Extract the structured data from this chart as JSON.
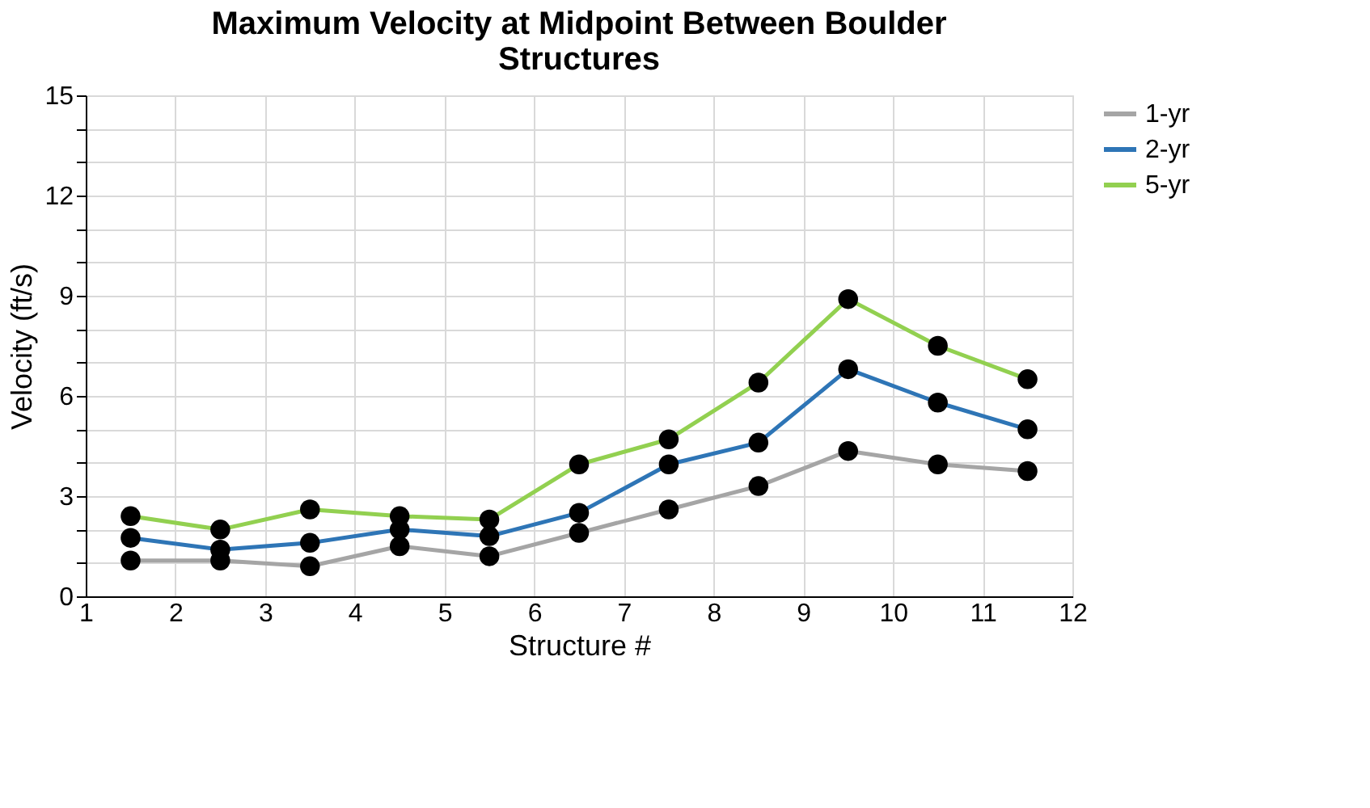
{
  "chart_data": {
    "type": "line",
    "title": "Maximum Velocity at Midpoint Between Boulder Structures",
    "xlabel": "Structure #",
    "ylabel": "Velocity (ft/s)",
    "x": [
      1.5,
      2.5,
      3.5,
      4.5,
      5.5,
      6.5,
      7.5,
      8.5,
      9.5,
      10.5,
      11.5
    ],
    "series": [
      {
        "name": "1-yr",
        "color": "#a5a5a5",
        "values": [
          1.07,
          1.07,
          0.9,
          1.5,
          1.2,
          1.9,
          2.6,
          3.3,
          4.35,
          3.95,
          3.75
        ]
      },
      {
        "name": "2-yr",
        "color": "#2e75b6",
        "values": [
          1.75,
          1.4,
          1.6,
          2.0,
          1.8,
          2.5,
          3.95,
          4.6,
          6.8,
          5.8,
          5.0
        ]
      },
      {
        "name": "5-yr",
        "color": "#92d050",
        "values": [
          2.4,
          2.0,
          2.6,
          2.4,
          2.3,
          3.95,
          4.7,
          6.4,
          8.9,
          7.5,
          6.5
        ]
      }
    ],
    "xlim": [
      1,
      12
    ],
    "xticks": [
      1,
      2,
      3,
      4,
      5,
      6,
      7,
      8,
      9,
      10,
      11,
      12
    ],
    "ylim": [
      0,
      15
    ],
    "yticks": [
      0,
      {
        "value": 1,
        "label": null
      },
      {
        "value": 2,
        "label": null
      },
      3,
      {
        "value": 4,
        "label": null
      },
      {
        "value": 5,
        "label": null
      },
      6,
      {
        "value": 7,
        "label": null
      },
      {
        "value": 8,
        "label": null
      },
      9,
      {
        "value": 10,
        "label": null
      },
      {
        "value": 11,
        "label": null
      },
      12,
      {
        "value": 13,
        "label": null
      },
      {
        "value": 14,
        "label": null
      },
      15
    ],
    "grid": true,
    "legend": "right",
    "marker": "circle",
    "line_style": "solid"
  }
}
